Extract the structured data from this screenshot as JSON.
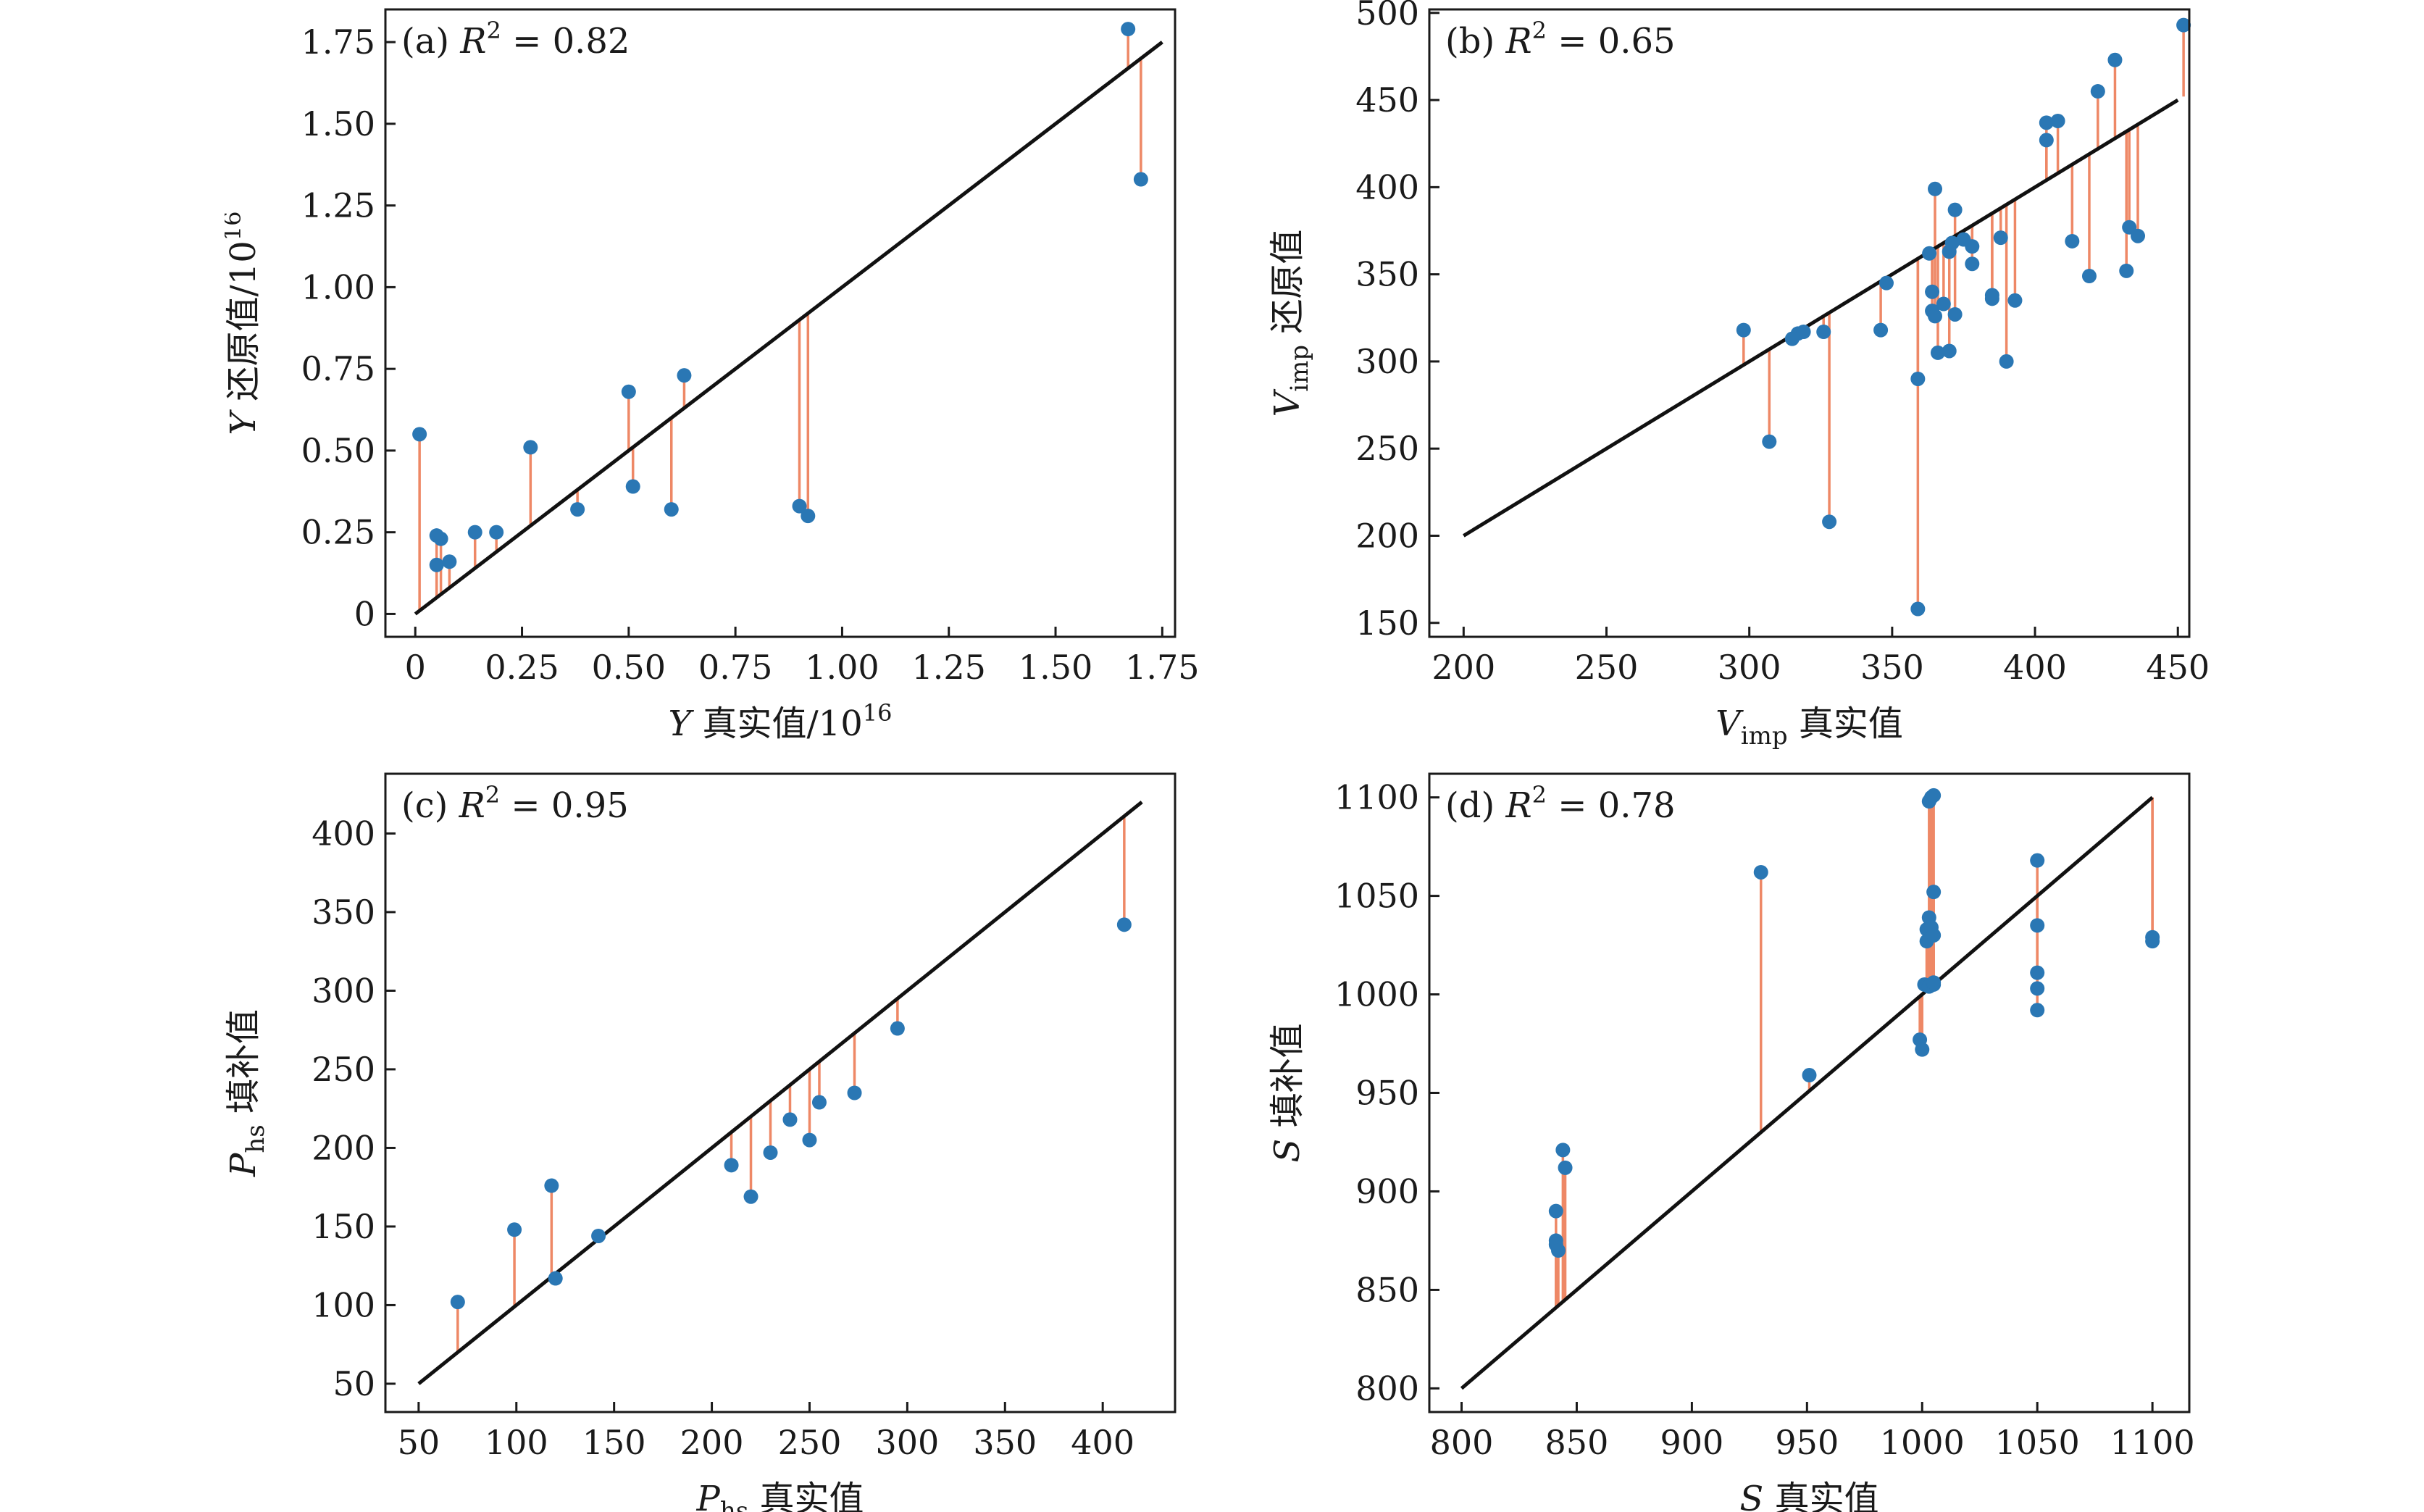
{
  "colors": {
    "point": "#2a77b4",
    "residual": "#ee8866",
    "line": "#111111"
  },
  "chart_data": [
    {
      "type": "scatter",
      "title_label": "(a)",
      "r2_text": "= 0.82",
      "xlabel_var": "Y",
      "xlabel_text": " 真实值/10",
      "xlabel_sup": "16",
      "ylabel_var": "Y",
      "ylabel_text": " 还原值/10",
      "ylabel_sup": "16",
      "xlim": [
        -0.07,
        1.78
      ],
      "ylim": [
        -0.07,
        1.85
      ],
      "xticks": [
        0,
        0.25,
        0.5,
        0.75,
        1.0,
        1.25,
        1.5,
        1.75
      ],
      "xtick_labels": [
        "0",
        "0.25",
        "0.50",
        "0.75",
        "1.00",
        "1.25",
        "1.50",
        "1.75"
      ],
      "yticks": [
        0,
        0.25,
        0.5,
        0.75,
        1.0,
        1.25,
        1.5,
        1.75
      ],
      "ytick_labels": [
        "0",
        "0.25",
        "0.50",
        "0.75",
        "1.00",
        "1.25",
        "1.50",
        "1.75"
      ],
      "line": [
        0,
        1.75
      ],
      "x": [
        0.01,
        0.05,
        0.06,
        0.05,
        0.08,
        0.14,
        0.19,
        0.27,
        0.38,
        0.5,
        0.51,
        0.6,
        0.63,
        0.9,
        0.92,
        1.67,
        1.7
      ],
      "y": [
        0.55,
        0.24,
        0.23,
        0.15,
        0.16,
        0.25,
        0.25,
        0.51,
        0.32,
        0.68,
        0.39,
        0.32,
        0.73,
        0.33,
        0.3,
        1.79,
        1.33
      ]
    },
    {
      "type": "scatter",
      "title_label": "(b)",
      "r2_text": "= 0.65",
      "xlabel_var": "V",
      "xlabel_sub": "imp",
      "xlabel_text": " 真实值",
      "ylabel_var": "V",
      "ylabel_sub": "imp",
      "ylabel_text": " 还原值",
      "xlim": [
        188,
        454
      ],
      "ylim": [
        142,
        502
      ],
      "xticks": [
        200,
        250,
        300,
        350,
        400,
        450
      ],
      "xtick_labels": [
        "200",
        "250",
        "300",
        "350",
        "400",
        "450"
      ],
      "yticks": [
        150,
        200,
        250,
        300,
        350,
        400,
        450,
        500
      ],
      "ytick_labels": [
        "150",
        "200",
        "250",
        "300",
        "350",
        "400",
        "450",
        "500"
      ],
      "line": [
        200,
        450
      ],
      "x": [
        298,
        307,
        315,
        317,
        319,
        326,
        328,
        346,
        348,
        359,
        359,
        363,
        364,
        364,
        365,
        365,
        366,
        368,
        370,
        370,
        371,
        372,
        372,
        375,
        378,
        378,
        385,
        385,
        388,
        390,
        393,
        404,
        404,
        408,
        413,
        419,
        422,
        428,
        432,
        433,
        436,
        452
      ],
      "y": [
        318,
        254,
        313,
        316,
        317,
        317,
        208,
        318,
        345,
        290,
        158,
        362,
        340,
        329,
        326,
        399,
        305,
        333,
        306,
        363,
        368,
        387,
        327,
        370,
        356,
        366,
        338,
        336,
        371,
        300,
        335,
        437,
        427,
        438,
        369,
        349,
        455,
        473,
        352,
        377,
        372,
        493
      ]
    },
    {
      "type": "scatter",
      "title_label": "(c)",
      "r2_text": "= 0.95",
      "xlabel_var": "P",
      "xlabel_sub": "hs",
      "xlabel_text": " 真实值",
      "ylabel_var": "P",
      "ylabel_sub": "hs",
      "ylabel_text": " 填补值",
      "xlim": [
        33,
        437
      ],
      "ylim": [
        32,
        438
      ],
      "xticks": [
        50,
        100,
        150,
        200,
        250,
        300,
        350,
        400
      ],
      "xtick_labels": [
        "50",
        "100",
        "150",
        "200",
        "250",
        "300",
        "350",
        "400"
      ],
      "yticks": [
        50,
        100,
        150,
        200,
        250,
        300,
        350,
        400
      ],
      "ytick_labels": [
        "50",
        "100",
        "150",
        "200",
        "250",
        "300",
        "350",
        "400"
      ],
      "line": [
        50,
        420
      ],
      "x": [
        70,
        99,
        118,
        120,
        142,
        210,
        220,
        230,
        240,
        250,
        255,
        273,
        295,
        411
      ],
      "y": [
        102,
        148,
        176,
        117,
        144,
        189,
        169,
        197,
        218,
        205,
        229,
        235,
        276,
        342
      ]
    },
    {
      "type": "scatter",
      "title_label": "(d)",
      "r2_text": "= 0.78",
      "xlabel_var": "S",
      "xlabel_text": " 真实值",
      "ylabel_var": "S",
      "ylabel_text": " 填补值",
      "xlim": [
        786,
        1116
      ],
      "ylim": [
        788,
        1112
      ],
      "xticks": [
        800,
        850,
        900,
        950,
        1000,
        1050,
        1100
      ],
      "xtick_labels": [
        "800",
        "850",
        "900",
        "950",
        "1000",
        "1050",
        "1100"
      ],
      "yticks": [
        800,
        850,
        900,
        950,
        1000,
        1050,
        1100
      ],
      "ytick_labels": [
        "800",
        "850",
        "900",
        "950",
        "1000",
        "1050",
        "1100"
      ],
      "line": [
        800,
        1100
      ],
      "x": [
        841,
        841,
        841,
        842,
        844,
        845,
        930,
        951,
        999,
        1000,
        1001,
        1002,
        1002,
        1003,
        1003,
        1003,
        1004,
        1004,
        1005,
        1005,
        1005,
        1005,
        1005,
        1050,
        1050,
        1050,
        1050,
        1050,
        1100,
        1100
      ],
      "y": [
        890,
        875,
        873,
        870,
        921,
        912,
        1062,
        959,
        977,
        972,
        1005,
        1033,
        1027,
        1039,
        1098,
        1004,
        1100,
        1034,
        1101,
        1052,
        1030,
        1005,
        1006,
        1068,
        1035,
        1011,
        1003,
        992,
        1029,
        1027
      ]
    }
  ]
}
